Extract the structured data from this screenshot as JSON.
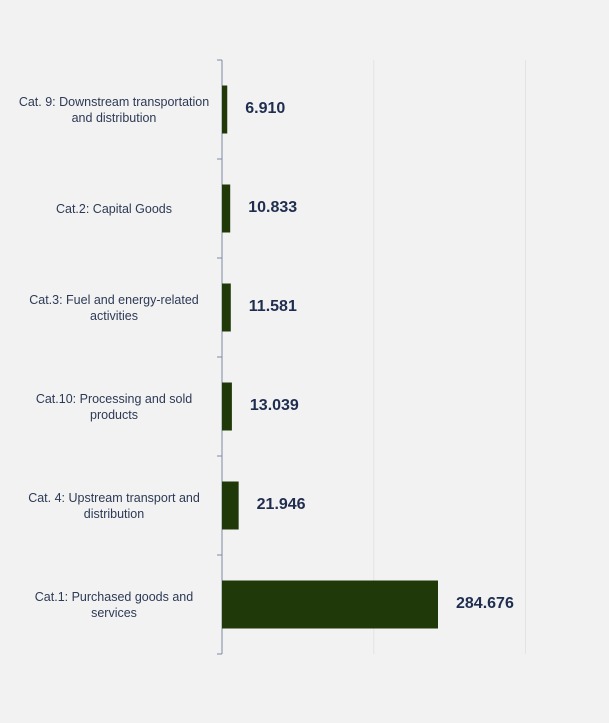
{
  "chart_data": {
    "type": "bar",
    "orientation": "horizontal",
    "categories": [
      "Cat. 9: Downstream transportation and distribution",
      "Cat.2: Capital Goods",
      "Cat.3: Fuel and energy-related activities",
      "Cat.10: Processing and sold products",
      "Cat. 4: Upstream transport and distribution",
      "Cat.1: Purchased goods and services"
    ],
    "values": [
      6.91,
      10.833,
      11.581,
      13.039,
      21.946,
      284.676
    ],
    "value_labels": [
      "6.910",
      "10.833",
      "11.581",
      "13.039",
      "21.946",
      "284.676"
    ],
    "xlim": [
      0,
      450
    ],
    "grid": true,
    "bar_color": "#1f3a08"
  }
}
